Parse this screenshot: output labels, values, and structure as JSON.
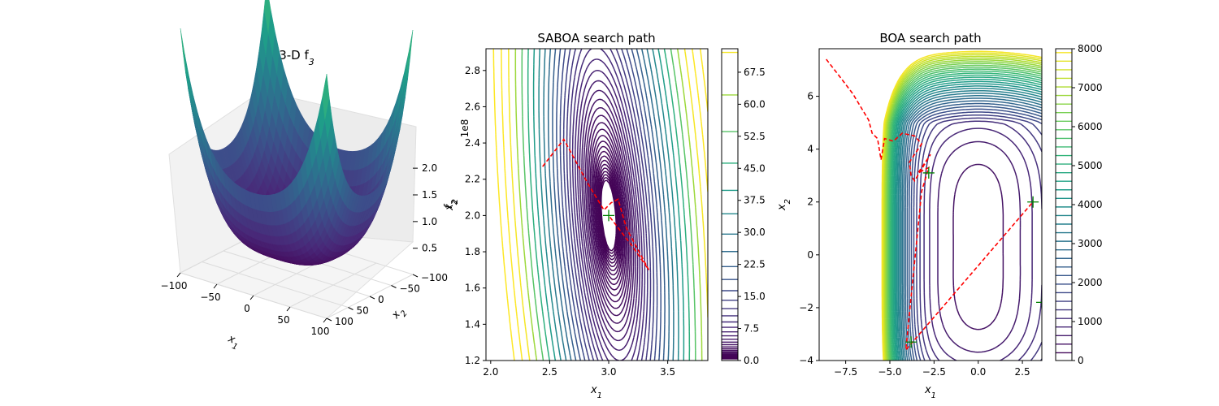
{
  "chart_data": [
    {
      "type": "surface",
      "title_main": "3-D f",
      "title_sub": "3",
      "xlabel_main": "x",
      "xlabel_sub": "1",
      "ylabel_main": "x",
      "ylabel_sub": "2",
      "zlabel_main": "f",
      "zlabel_sub": "2",
      "z_offset_label": "1e8",
      "xticks": [
        "-100",
        "-50",
        "0",
        "50",
        "100"
      ],
      "yticks": [
        "-100",
        "-50",
        "0",
        "50",
        "100"
      ],
      "zticks": [
        "0.5",
        "1.0",
        "1.5",
        "2.0"
      ],
      "xlim": [
        -100,
        100
      ],
      "ylim": [
        -100,
        100
      ],
      "zlim": [
        0.1,
        2.1
      ],
      "colormap": "viridis"
    },
    {
      "type": "contour",
      "title": "SABOA search path",
      "xlabel_main": "x",
      "xlabel_sub": "1",
      "ylabel_main": "x",
      "ylabel_sub": "2",
      "xlim": [
        1.96,
        3.84
      ],
      "ylim": [
        1.2,
        2.92
      ],
      "xticks": [
        2.0,
        2.5,
        3.0,
        3.5
      ],
      "xtick_labels": [
        "2.0",
        "2.5",
        "3.0",
        "3.5"
      ],
      "yticks": [
        1.2,
        1.4,
        1.6,
        1.8,
        2.0,
        2.2,
        2.4,
        2.6,
        2.8
      ],
      "ytick_labels": [
        "1.2",
        "1.4",
        "1.6",
        "1.8",
        "2.0",
        "2.2",
        "2.4",
        "2.6",
        "2.8"
      ],
      "colorbar_ticks": [
        0.0,
        7.5,
        15.0,
        22.5,
        30.0,
        37.5,
        45.0,
        52.5,
        60.0,
        67.5
      ],
      "colorbar_labels": [
        "0.0",
        "7.5",
        "15.0",
        "22.5",
        "30.0",
        "37.5",
        "45.0",
        "52.5",
        "60.0",
        "67.5"
      ],
      "colorbar_range": [
        0,
        73
      ],
      "path_color": "#ff0000",
      "path": [
        [
          2.44,
          2.27
        ],
        [
          2.62,
          2.42
        ],
        [
          2.82,
          2.18
        ],
        [
          2.96,
          2.03
        ],
        [
          3.02,
          2.07
        ],
        [
          3.08,
          2.09
        ],
        [
          3.15,
          1.93
        ],
        [
          3.34,
          1.7
        ],
        [
          3.2,
          1.83
        ],
        [
          3.0,
          2.0
        ]
      ],
      "markers": [
        [
          3.0,
          2.0
        ]
      ],
      "marker_color": "#008000"
    },
    {
      "type": "contour",
      "title": "BOA search path",
      "xlabel_main": "x",
      "xlabel_sub": "1",
      "ylabel_main": "x",
      "ylabel_sub": "2",
      "xlim": [
        -9.0,
        3.6
      ],
      "ylim": [
        -4.0,
        7.8
      ],
      "xticks": [
        -7.5,
        -5.0,
        -2.5,
        0.0,
        2.5
      ],
      "xtick_labels": [
        "-7.5",
        "-5.0",
        "-2.5",
        "0.0",
        "2.5"
      ],
      "yticks": [
        -4,
        -2,
        0,
        2,
        4,
        6
      ],
      "ytick_labels": [
        "-4",
        "-2",
        "0",
        "2",
        "4",
        "6"
      ],
      "colorbar_ticks": [
        0,
        1000,
        2000,
        3000,
        4000,
        5000,
        6000,
        7000,
        8000
      ],
      "colorbar_labels": [
        "0",
        "1000",
        "2000",
        "3000",
        "4000",
        "5000",
        "6000",
        "7000",
        "8000"
      ],
      "colorbar_range": [
        0,
        8000
      ],
      "path_color": "#ff0000",
      "path": [
        [
          -8.6,
          7.4
        ],
        [
          -7.9,
          6.8
        ],
        [
          -7.1,
          6.1
        ],
        [
          -6.2,
          5.1
        ],
        [
          -6.0,
          4.6
        ],
        [
          -5.7,
          4.4
        ],
        [
          -5.5,
          3.6
        ],
        [
          -5.3,
          4.4
        ],
        [
          -4.8,
          4.3
        ],
        [
          -4.3,
          4.6
        ],
        [
          -3.6,
          4.5
        ],
        [
          -3.2,
          4.2
        ],
        [
          -3.9,
          3.5
        ],
        [
          -3.8,
          3.0
        ],
        [
          -3.6,
          2.8
        ],
        [
          -2.7,
          3.8
        ],
        [
          -2.9,
          3.6
        ],
        [
          -3.4,
          3.1
        ],
        [
          -2.8,
          3.3
        ],
        [
          -3.2,
          2.4
        ],
        [
          -4.1,
          -3.6
        ],
        [
          3.1,
          2.0
        ]
      ],
      "markers": [
        [
          -2.8,
          3.1
        ],
        [
          3.1,
          2.0
        ],
        [
          -3.8,
          -3.3
        ],
        [
          3.6,
          -1.8
        ]
      ],
      "marker_color": "#008000"
    }
  ]
}
